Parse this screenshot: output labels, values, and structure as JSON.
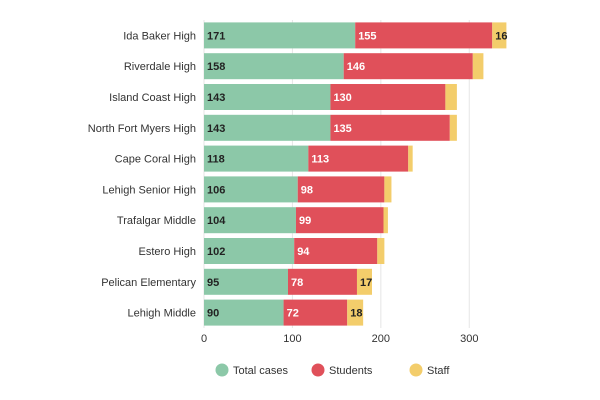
{
  "chart_data": {
    "type": "bar",
    "orientation": "horizontal",
    "stacked": true,
    "categories": [
      "Ida Baker High",
      "Riverdale High",
      "Island Coast High",
      "North Fort Myers High",
      "Cape Coral High",
      "Lehigh Senior High",
      "Trafalgar Middle",
      "Estero High",
      "Pelican Elementary",
      "Lehigh Middle"
    ],
    "series": [
      {
        "name": "Total cases",
        "color": "#8cc8a8",
        "values": [
          171,
          158,
          143,
          143,
          118,
          106,
          104,
          102,
          95,
          90
        ],
        "labels": [
          "171",
          "158",
          "143",
          "143",
          "118",
          "106",
          "104",
          "102",
          "95",
          "90"
        ]
      },
      {
        "name": "Students",
        "color": "#e0505a",
        "values": [
          155,
          146,
          130,
          135,
          113,
          98,
          99,
          94,
          78,
          72
        ],
        "labels": [
          "155",
          "146",
          "130",
          "135",
          "113",
          "98",
          "99",
          "94",
          "78",
          "72"
        ]
      },
      {
        "name": "Staff",
        "color": "#f3cd6b",
        "values": [
          16,
          12,
          13,
          8,
          5,
          8,
          5,
          8,
          17,
          18
        ],
        "labels": [
          "16",
          "",
          "",
          "",
          "",
          "",
          "",
          "",
          "17",
          "18"
        ]
      }
    ],
    "xlim": [
      0,
      380
    ],
    "xticks": [
      "0",
      "100",
      "200",
      "300"
    ],
    "grid": true,
    "legend": "bottom",
    "title": "",
    "xlabel": "",
    "ylabel": ""
  }
}
